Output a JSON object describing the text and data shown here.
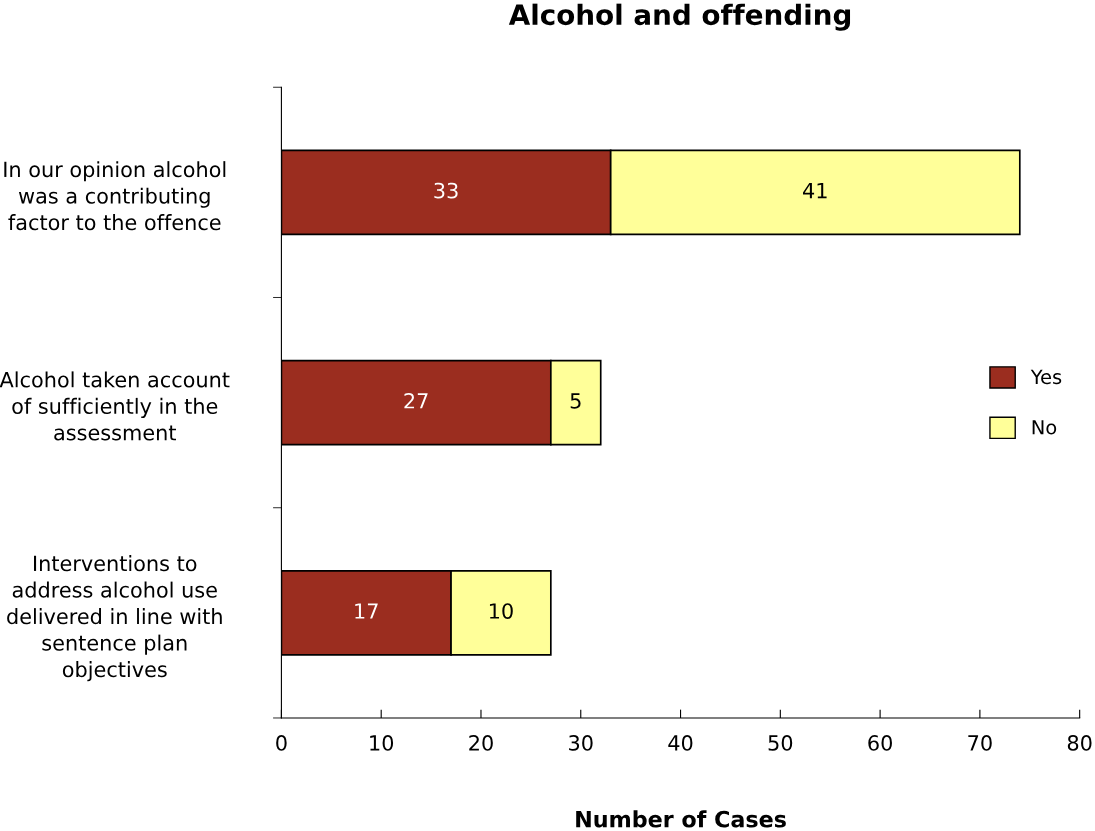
{
  "chart_data": {
    "type": "bar",
    "title": "Alcohol and offending",
    "xlabel": "Number of Cases",
    "orientation": "horizontal",
    "stacked": true,
    "categories": [
      "In our opinion alcohol\nwas a contributing\nfactor to the offence",
      "Alcohol taken account\nof sufficiently in the\nassessment",
      "Interventions to\naddress alcohol use\ndelivered in line with\nsentence plan\nobjectives"
    ],
    "series": [
      {
        "name": "Yes",
        "color": "#9b2d1f",
        "values": [
          33,
          27,
          17
        ]
      },
      {
        "name": "No",
        "color": "#ffff99",
        "values": [
          41,
          5,
          10
        ]
      }
    ],
    "xlim": [
      0,
      80
    ],
    "xticks": [
      0,
      10,
      20,
      30,
      40,
      50,
      60,
      70,
      80
    ],
    "data_labels": true,
    "grid": false,
    "legend": "right"
  }
}
